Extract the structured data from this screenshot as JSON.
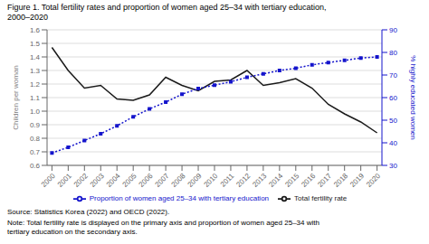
{
  "chart_data": {
    "type": "line",
    "title": "Figure 1. Total fertility rates and proportion of women aged 25–34 with tertiary education,\n2000–2020",
    "x": [
      2000,
      2001,
      2002,
      2003,
      2004,
      2005,
      2006,
      2007,
      2008,
      2009,
      2010,
      2011,
      2012,
      2013,
      2014,
      2015,
      2016,
      2017,
      2018,
      2019,
      2020
    ],
    "xlim": [
      1999.7,
      2020.3
    ],
    "xticks": [
      2000,
      2001,
      2002,
      2003,
      2004,
      2005,
      2006,
      2007,
      2008,
      2009,
      2010,
      2011,
      2012,
      2013,
      2014,
      2015,
      2016,
      2017,
      2018,
      2019,
      2020
    ],
    "series": [
      {
        "name": "Total fertility rate",
        "color": "#1a1a1a",
        "line_style": "solid",
        "values": [
          1.47,
          1.3,
          1.17,
          1.19,
          1.09,
          1.08,
          1.12,
          1.25,
          1.19,
          1.15,
          1.22,
          1.23,
          1.3,
          1.19,
          1.21,
          1.24,
          1.17,
          1.05,
          0.98,
          0.92,
          0.84
        ]
      },
      {
        "name": "Proportion of women aged 25–34 with tertiary education",
        "color": "#1414cc",
        "line_style": "dotted",
        "marker": "square",
        "axis": "y2",
        "values": [
          35.5,
          38.0,
          41.0,
          44.0,
          47.5,
          51.5,
          55.0,
          58.0,
          61.5,
          64.0,
          65.5,
          67.0,
          69.0,
          70.5,
          72.0,
          73.0,
          74.5,
          75.5,
          76.5,
          77.5,
          78.0
        ]
      }
    ],
    "ylabel": "Children per woman",
    "y2label": "% highly educated women",
    "ylim": [
      0.6,
      1.6
    ],
    "yticks": [
      0.6,
      0.7,
      0.8,
      0.9,
      {
        "value": 1,
        "label": "1.0"
      },
      1.1,
      1.2,
      1.3,
      1.4,
      1.5,
      1.6
    ],
    "y2lim": [
      30,
      90
    ],
    "y2ticks": [
      30,
      40,
      50,
      60,
      70,
      80,
      90
    ],
    "grid": true,
    "legend": "bottom",
    "annotations": [
      "Source: Statistics Korea (2022) and OECD (2022).",
      "Note: Total fertility rate is displayed on the primary axis and proportion of women aged 25–34 with\ntertiary education on the secondary axis."
    ]
  }
}
